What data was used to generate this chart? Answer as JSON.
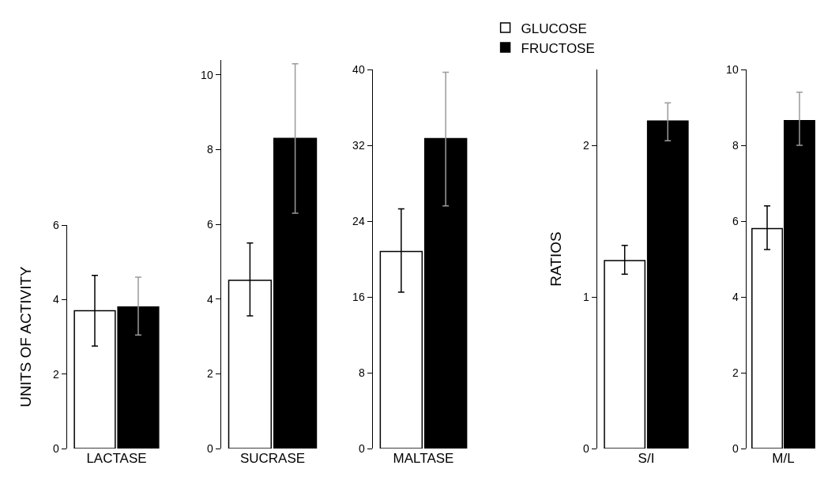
{
  "chart_data": [
    {
      "type": "bar",
      "ylabel": "UNITS OF ACTIVITY",
      "categories": [
        "LACTASE"
      ],
      "ylim": [
        0,
        6
      ],
      "yticks": [
        0,
        2,
        4,
        6
      ],
      "grid": false,
      "legend": false,
      "series": [
        {
          "color": "#ffffff",
          "values": [
            3.7
          ],
          "errors": [
            [
              2.75,
              4.65
            ]
          ]
        },
        {
          "color": "#000000",
          "values": [
            3.8
          ],
          "errors": [
            [
              3.05,
              4.6
            ]
          ]
        }
      ]
    },
    {
      "type": "bar",
      "categories": [
        "SUCRASE"
      ],
      "ylim": [
        0,
        10.4
      ],
      "yticks": [
        0,
        2,
        4,
        6,
        8,
        10
      ],
      "grid": false,
      "legend": false,
      "series": [
        {
          "color": "#ffffff",
          "values": [
            4.5
          ],
          "errors": [
            [
              3.55,
              5.5
            ]
          ]
        },
        {
          "color": "#000000",
          "values": [
            8.3
          ],
          "errors": [
            [
              6.3,
              10.3
            ]
          ]
        }
      ]
    },
    {
      "type": "bar",
      "categories": [
        "MALTASE"
      ],
      "ylim": [
        0,
        40
      ],
      "yticks": [
        0,
        8,
        16,
        24,
        32,
        40
      ],
      "grid": false,
      "legend": false,
      "series": [
        {
          "color": "#ffffff",
          "values": [
            20.8
          ],
          "errors": [
            [
              16.5,
              25.3
            ]
          ]
        },
        {
          "color": "#000000",
          "values": [
            32.7
          ],
          "errors": [
            [
              25.6,
              39.7
            ]
          ]
        }
      ]
    },
    {
      "type": "bar",
      "ylabel": "RATIOS",
      "categories": [
        "S/I"
      ],
      "ylim": [
        0,
        2.5
      ],
      "yticks": [
        0,
        1,
        2
      ],
      "grid": false,
      "legend": "top left",
      "series": [
        {
          "name": "GLUCOSE",
          "color": "#ffffff",
          "values": [
            1.24
          ],
          "errors": [
            [
              1.15,
              1.34
            ]
          ]
        },
        {
          "name": "FRUCTOSE",
          "color": "#000000",
          "values": [
            2.16
          ],
          "errors": [
            [
              2.03,
              2.28
            ]
          ]
        }
      ]
    },
    {
      "type": "bar",
      "categories": [
        "M/L"
      ],
      "ylim": [
        0,
        10
      ],
      "yticks": [
        0,
        2,
        4,
        6,
        8,
        10
      ],
      "grid": false,
      "legend": false,
      "series": [
        {
          "color": "#ffffff",
          "values": [
            5.8
          ],
          "errors": [
            [
              5.25,
              6.4
            ]
          ]
        },
        {
          "color": "#000000",
          "values": [
            8.65
          ],
          "errors": [
            [
              8.0,
              9.4
            ]
          ]
        }
      ]
    }
  ]
}
